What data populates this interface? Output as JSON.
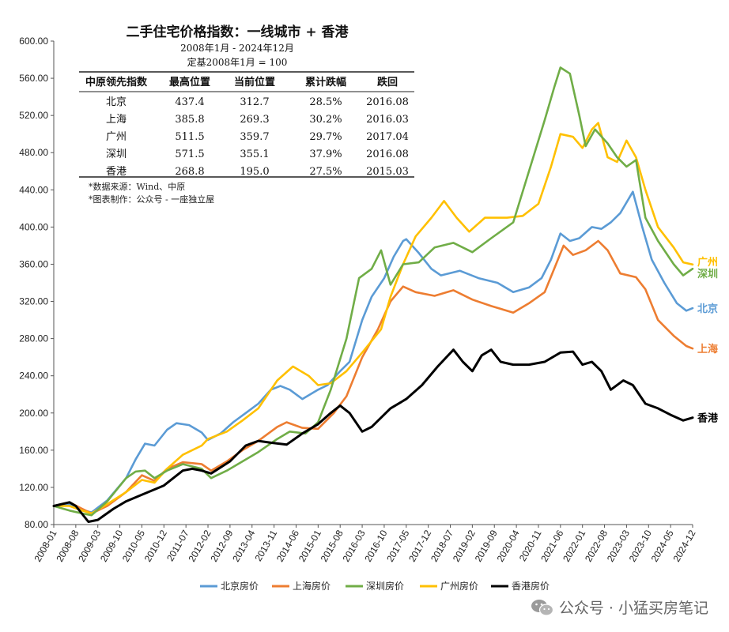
{
  "chart_data": {
    "type": "line",
    "title": "二手住宅价格指数：一线城市 + 香港",
    "subtitle_lines": [
      "2008年1月 - 2024年12月",
      "定基2008年1月 = 100"
    ],
    "ylim": [
      80,
      600
    ],
    "yticks": [
      "80.00",
      "120.00",
      "160.00",
      "200.00",
      "240.00",
      "280.00",
      "320.00",
      "360.00",
      "400.00",
      "440.00",
      "480.00",
      "520.00",
      "560.00",
      "600.00"
    ],
    "xlim": [
      "2008-01",
      "2024-12"
    ],
    "xticks": [
      "2008-01",
      "2008-08",
      "2009-03",
      "2009-10",
      "2010-05",
      "2010-12",
      "2011-07",
      "2012-02",
      "2012-09",
      "2013-04",
      "2013-11",
      "2014-06",
      "2015-01",
      "2015-08",
      "2016-03",
      "2016-10",
      "2017-05",
      "2017-12",
      "2018-07",
      "2019-02",
      "2019-09",
      "2020-04",
      "2020-11",
      "2021-06",
      "2022-01",
      "2022-08",
      "2023-03",
      "2023-10",
      "2024-05",
      "2024-12"
    ],
    "grid": false,
    "legend_position": "bottom",
    "series": [
      {
        "name": "北京房价",
        "end_label": "北京",
        "color": "#5b9bd5",
        "points": [
          [
            "2008-01",
            100
          ],
          [
            "2008-06",
            102
          ],
          [
            "2008-10",
            96
          ],
          [
            "2009-01",
            93
          ],
          [
            "2009-06",
            106
          ],
          [
            "2009-12",
            130
          ],
          [
            "2010-03",
            150
          ],
          [
            "2010-06",
            167
          ],
          [
            "2010-09",
            165
          ],
          [
            "2011-01",
            182
          ],
          [
            "2011-04",
            189
          ],
          [
            "2011-08",
            187
          ],
          [
            "2011-12",
            179
          ],
          [
            "2012-02",
            171
          ],
          [
            "2012-06",
            178
          ],
          [
            "2012-10",
            190
          ],
          [
            "2013-02",
            200
          ],
          [
            "2013-06",
            210
          ],
          [
            "2013-10",
            225
          ],
          [
            "2014-01",
            229
          ],
          [
            "2014-04",
            225
          ],
          [
            "2014-08",
            215
          ],
          [
            "2015-01",
            225
          ],
          [
            "2015-04",
            230
          ],
          [
            "2015-08",
            245
          ],
          [
            "2015-11",
            255
          ],
          [
            "2016-03",
            300
          ],
          [
            "2016-06",
            325
          ],
          [
            "2016-10",
            345
          ],
          [
            "2017-01",
            368
          ],
          [
            "2017-04",
            385
          ],
          [
            "2017-05",
            387
          ],
          [
            "2017-09",
            372
          ],
          [
            "2018-01",
            355
          ],
          [
            "2018-04",
            348
          ],
          [
            "2018-10",
            353
          ],
          [
            "2019-04",
            345
          ],
          [
            "2019-10",
            340
          ],
          [
            "2020-03",
            330
          ],
          [
            "2020-08",
            335
          ],
          [
            "2020-12",
            345
          ],
          [
            "2021-03",
            365
          ],
          [
            "2021-06",
            393
          ],
          [
            "2021-09",
            385
          ],
          [
            "2021-12",
            388
          ],
          [
            "2022-04",
            400
          ],
          [
            "2022-07",
            398
          ],
          [
            "2022-10",
            405
          ],
          [
            "2023-01",
            415
          ],
          [
            "2023-05",
            438
          ],
          [
            "2023-08",
            400
          ],
          [
            "2023-11",
            365
          ],
          [
            "2024-03",
            340
          ],
          [
            "2024-07",
            318
          ],
          [
            "2024-10",
            310
          ],
          [
            "2024-12",
            312.7
          ]
        ]
      },
      {
        "name": "上海房价",
        "end_label": "上海",
        "color": "#ed7d31",
        "points": [
          [
            "2008-01",
            100
          ],
          [
            "2008-06",
            104
          ],
          [
            "2008-10",
            97
          ],
          [
            "2009-01",
            92
          ],
          [
            "2009-06",
            100
          ],
          [
            "2009-12",
            115
          ],
          [
            "2010-05",
            133
          ],
          [
            "2010-09",
            127
          ],
          [
            "2011-01",
            140
          ],
          [
            "2011-06",
            147
          ],
          [
            "2011-12",
            145
          ],
          [
            "2012-03",
            138
          ],
          [
            "2012-08",
            148
          ],
          [
            "2013-01",
            160
          ],
          [
            "2013-06",
            170
          ],
          [
            "2013-12",
            185
          ],
          [
            "2014-03",
            190
          ],
          [
            "2014-08",
            184
          ],
          [
            "2015-01",
            183
          ],
          [
            "2015-06",
            200
          ],
          [
            "2015-10",
            218
          ],
          [
            "2016-03",
            260
          ],
          [
            "2016-08",
            290
          ],
          [
            "2016-12",
            320
          ],
          [
            "2017-04",
            336
          ],
          [
            "2017-08",
            330
          ],
          [
            "2018-02",
            326
          ],
          [
            "2018-08",
            332
          ],
          [
            "2019-02",
            322
          ],
          [
            "2019-08",
            315
          ],
          [
            "2020-03",
            308
          ],
          [
            "2020-08",
            318
          ],
          [
            "2021-01",
            330
          ],
          [
            "2021-04",
            355
          ],
          [
            "2021-07",
            380
          ],
          [
            "2021-10",
            370
          ],
          [
            "2022-02",
            375
          ],
          [
            "2022-06",
            385
          ],
          [
            "2022-09",
            375
          ],
          [
            "2023-01",
            350
          ],
          [
            "2023-06",
            346
          ],
          [
            "2023-09",
            333
          ],
          [
            "2024-01",
            300
          ],
          [
            "2024-06",
            283
          ],
          [
            "2024-10",
            272
          ],
          [
            "2024-12",
            269.3
          ]
        ]
      },
      {
        "name": "深圳房价",
        "end_label": "深圳",
        "color": "#70ad47",
        "points": [
          [
            "2008-01",
            100
          ],
          [
            "2008-06",
            95
          ],
          [
            "2008-10",
            92
          ],
          [
            "2009-01",
            90
          ],
          [
            "2009-06",
            105
          ],
          [
            "2009-12",
            130
          ],
          [
            "2010-03",
            137
          ],
          [
            "2010-06",
            138
          ],
          [
            "2010-09",
            130
          ],
          [
            "2011-01",
            138
          ],
          [
            "2011-06",
            145
          ],
          [
            "2011-12",
            140
          ],
          [
            "2012-03",
            130
          ],
          [
            "2012-08",
            138
          ],
          [
            "2013-01",
            148
          ],
          [
            "2013-06",
            158
          ],
          [
            "2013-12",
            172
          ],
          [
            "2014-04",
            180
          ],
          [
            "2014-09",
            178
          ],
          [
            "2015-01",
            190
          ],
          [
            "2015-05",
            225
          ],
          [
            "2015-10",
            280
          ],
          [
            "2016-02",
            345
          ],
          [
            "2016-06",
            355
          ],
          [
            "2016-09",
            375
          ],
          [
            "2016-12",
            338
          ],
          [
            "2017-04",
            360
          ],
          [
            "2017-09",
            362
          ],
          [
            "2018-02",
            378
          ],
          [
            "2018-08",
            383
          ],
          [
            "2019-02",
            373
          ],
          [
            "2019-08",
            388
          ],
          [
            "2020-03",
            405
          ],
          [
            "2020-08",
            460
          ],
          [
            "2021-01",
            515
          ],
          [
            "2021-04",
            550
          ],
          [
            "2021-06",
            571.5
          ],
          [
            "2021-09",
            565
          ],
          [
            "2021-12",
            520
          ],
          [
            "2022-02",
            487
          ],
          [
            "2022-05",
            505
          ],
          [
            "2022-09",
            490
          ],
          [
            "2022-12",
            475
          ],
          [
            "2023-03",
            465
          ],
          [
            "2023-06",
            472
          ],
          [
            "2023-09",
            410
          ],
          [
            "2024-01",
            385
          ],
          [
            "2024-06",
            360
          ],
          [
            "2024-09",
            348
          ],
          [
            "2024-12",
            355.1
          ]
        ]
      },
      {
        "name": "广州房价",
        "end_label": "广州",
        "color": "#ffc000",
        "points": [
          [
            "2008-01",
            100
          ],
          [
            "2008-06",
            100
          ],
          [
            "2008-10",
            95
          ],
          [
            "2009-01",
            92
          ],
          [
            "2009-06",
            102
          ],
          [
            "2009-12",
            115
          ],
          [
            "2010-05",
            128
          ],
          [
            "2010-09",
            125
          ],
          [
            "2011-01",
            140
          ],
          [
            "2011-06",
            155
          ],
          [
            "2011-12",
            165
          ],
          [
            "2012-02",
            172
          ],
          [
            "2012-08",
            180
          ],
          [
            "2013-01",
            192
          ],
          [
            "2013-06",
            205
          ],
          [
            "2013-12",
            235
          ],
          [
            "2014-05",
            250
          ],
          [
            "2014-10",
            240
          ],
          [
            "2015-01",
            230
          ],
          [
            "2015-05",
            232
          ],
          [
            "2015-10",
            245
          ],
          [
            "2016-03",
            265
          ],
          [
            "2016-09",
            290
          ],
          [
            "2016-12",
            325
          ],
          [
            "2017-04",
            360
          ],
          [
            "2017-08",
            390
          ],
          [
            "2018-01",
            410
          ],
          [
            "2018-05",
            428
          ],
          [
            "2018-09",
            410
          ],
          [
            "2019-01",
            395
          ],
          [
            "2019-06",
            410
          ],
          [
            "2020-01",
            410
          ],
          [
            "2020-06",
            412
          ],
          [
            "2020-11",
            425
          ],
          [
            "2021-03",
            465
          ],
          [
            "2021-06",
            500
          ],
          [
            "2021-10",
            497
          ],
          [
            "2022-01",
            485
          ],
          [
            "2022-04",
            505
          ],
          [
            "2022-06",
            512
          ],
          [
            "2022-09",
            475
          ],
          [
            "2022-12",
            470
          ],
          [
            "2023-03",
            493
          ],
          [
            "2023-06",
            475
          ],
          [
            "2023-09",
            440
          ],
          [
            "2024-01",
            400
          ],
          [
            "2024-06",
            378
          ],
          [
            "2024-09",
            362
          ],
          [
            "2024-12",
            359.7
          ]
        ]
      },
      {
        "name": "香港房价",
        "end_label": "香港",
        "color": "#000000",
        "points": [
          [
            "2008-01",
            100
          ],
          [
            "2008-06",
            104
          ],
          [
            "2008-08",
            100
          ],
          [
            "2008-12",
            83
          ],
          [
            "2009-03",
            85
          ],
          [
            "2009-08",
            97
          ],
          [
            "2009-12",
            105
          ],
          [
            "2010-05",
            112
          ],
          [
            "2010-12",
            122
          ],
          [
            "2011-06",
            138
          ],
          [
            "2011-09",
            140
          ],
          [
            "2011-12",
            138
          ],
          [
            "2012-03",
            135
          ],
          [
            "2012-09",
            148
          ],
          [
            "2013-02",
            165
          ],
          [
            "2013-06",
            170
          ],
          [
            "2013-10",
            168
          ],
          [
            "2014-03",
            166
          ],
          [
            "2014-08",
            178
          ],
          [
            "2015-01",
            188
          ],
          [
            "2015-05",
            200
          ],
          [
            "2015-08",
            208
          ],
          [
            "2015-11",
            200
          ],
          [
            "2016-03",
            180
          ],
          [
            "2016-06",
            185
          ],
          [
            "2016-12",
            205
          ],
          [
            "2017-05",
            215
          ],
          [
            "2017-10",
            230
          ],
          [
            "2018-03",
            250
          ],
          [
            "2018-08",
            268
          ],
          [
            "2018-11",
            255
          ],
          [
            "2019-02",
            245
          ],
          [
            "2019-05",
            262
          ],
          [
            "2019-08",
            268
          ],
          [
            "2019-11",
            255
          ],
          [
            "2020-03",
            252
          ],
          [
            "2020-08",
            252
          ],
          [
            "2021-01",
            255
          ],
          [
            "2021-06",
            265
          ],
          [
            "2021-10",
            266
          ],
          [
            "2022-01",
            252
          ],
          [
            "2022-04",
            255
          ],
          [
            "2022-07",
            245
          ],
          [
            "2022-10",
            225
          ],
          [
            "2023-02",
            235
          ],
          [
            "2023-05",
            230
          ],
          [
            "2023-09",
            210
          ],
          [
            "2024-01",
            205
          ],
          [
            "2024-05",
            198
          ],
          [
            "2024-09",
            192
          ],
          [
            "2024-12",
            195.0
          ]
        ]
      }
    ],
    "table": {
      "headers": [
        "中原领先指数",
        "最高位置",
        "当前位置",
        "累计跌幅",
        "跌回"
      ],
      "rows": [
        [
          "北京",
          "437.4",
          "312.7",
          "28.5%",
          "2016.08"
        ],
        [
          "上海",
          "385.8",
          "269.3",
          "30.2%",
          "2016.03"
        ],
        [
          "广州",
          "511.5",
          "359.7",
          "29.7%",
          "2017.04"
        ],
        [
          "深圳",
          "571.5",
          "355.1",
          "37.9%",
          "2016.08"
        ],
        [
          "香港",
          "268.8",
          "195.0",
          "27.5%",
          "2015.03"
        ]
      ]
    },
    "notes": [
      "*数据来源：Wind、中原",
      "*图表制作：公众号 - 一座独立屋"
    ]
  },
  "watermark": {
    "text": "公众号 · 小猛买房笔记",
    "icon": "wechat-icon"
  }
}
